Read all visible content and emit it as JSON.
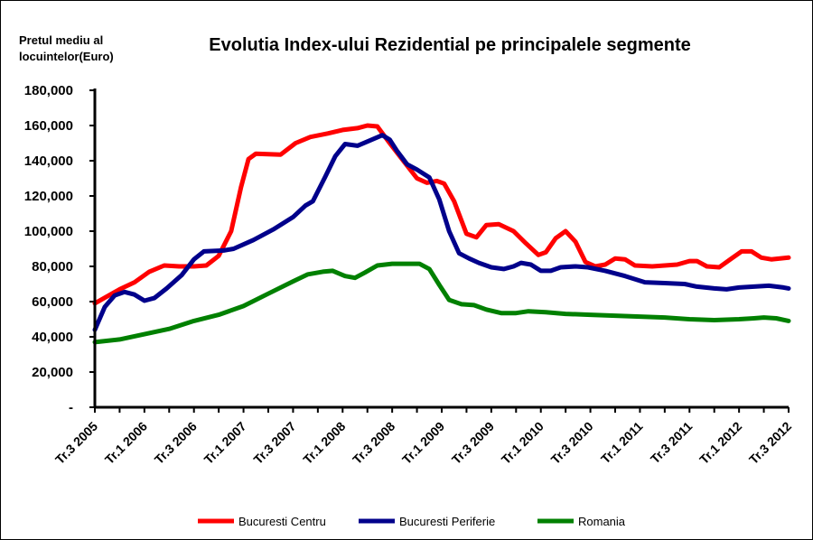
{
  "chart_data": {
    "type": "line",
    "title": "Evolutia Index-ului Rezidential pe principalele segmente",
    "ylabel": [
      "Pretul mediu al",
      "locuintelor(Euro)"
    ],
    "xlabel": "",
    "ylim": [
      0,
      180000
    ],
    "y_ticks": [
      {
        "value": 0,
        "label": "-"
      },
      {
        "value": 20000,
        "label": "20,000"
      },
      {
        "value": 40000,
        "label": "40,000"
      },
      {
        "value": 60000,
        "label": "60,000"
      },
      {
        "value": 80000,
        "label": "80,000"
      },
      {
        "value": 100000,
        "label": "100,000"
      },
      {
        "value": 120000,
        "label": "120,000"
      },
      {
        "value": 140000,
        "label": "140,000"
      },
      {
        "value": 160000,
        "label": "160,000"
      },
      {
        "value": 180000,
        "label": "180,000"
      }
    ],
    "x_range": [
      0,
      28
    ],
    "x_ticks": [
      {
        "pos": 0,
        "label": "Tr.3 2005"
      },
      {
        "pos": 2,
        "label": "Tr.1 2006"
      },
      {
        "pos": 4,
        "label": "Tr.3 2006"
      },
      {
        "pos": 6,
        "label": "Tr.1 2007"
      },
      {
        "pos": 8,
        "label": "Tr.3 2007"
      },
      {
        "pos": 10,
        "label": "Tr.1 2008"
      },
      {
        "pos": 12,
        "label": "Tr.3 2008"
      },
      {
        "pos": 14,
        "label": "Tr.1 2009"
      },
      {
        "pos": 16,
        "label": "Tr.3 2009"
      },
      {
        "pos": 18,
        "label": "Tr.1 2010"
      },
      {
        "pos": 20,
        "label": "Tr.3 2010"
      },
      {
        "pos": 22,
        "label": "Tr.1 2011"
      },
      {
        "pos": 24,
        "label": "Tr.3 2011"
      },
      {
        "pos": 26,
        "label": "Tr.1 2012"
      },
      {
        "pos": 28,
        "label": "Tr.3 2012"
      }
    ],
    "grid": false,
    "legend_position": "bottom",
    "series": [
      {
        "name": "Bucuresti Centru",
        "color": "#ff0000",
        "points": [
          [
            0,
            59000
          ],
          [
            1,
            67000
          ],
          [
            1.6,
            71000
          ],
          [
            2.2,
            77000
          ],
          [
            2.8,
            80500
          ],
          [
            3.4,
            80000
          ],
          [
            4,
            80000
          ],
          [
            4.5,
            80500
          ],
          [
            5,
            86000
          ],
          [
            5.5,
            100000
          ],
          [
            5.9,
            125000
          ],
          [
            6.2,
            141000
          ],
          [
            6.5,
            144000
          ],
          [
            7.5,
            143500
          ],
          [
            8.1,
            150000
          ],
          [
            8.7,
            153500
          ],
          [
            9.4,
            155500
          ],
          [
            10,
            157500
          ],
          [
            10.6,
            158500
          ],
          [
            11.0,
            160000
          ],
          [
            11.4,
            159500
          ],
          [
            11.9,
            150000
          ],
          [
            12.5,
            139000
          ],
          [
            13.0,
            130000
          ],
          [
            13.4,
            127500
          ],
          [
            13.8,
            128500
          ],
          [
            14.1,
            127000
          ],
          [
            14.5,
            117000
          ],
          [
            15.0,
            98500
          ],
          [
            15.4,
            96500
          ],
          [
            15.8,
            103500
          ],
          [
            16.3,
            104000
          ],
          [
            16.9,
            100000
          ],
          [
            17.4,
            93000
          ],
          [
            17.9,
            86500
          ],
          [
            18.2,
            88000
          ],
          [
            18.6,
            96000
          ],
          [
            19.0,
            100000
          ],
          [
            19.4,
            94000
          ],
          [
            19.8,
            82500
          ],
          [
            20.2,
            80000
          ],
          [
            20.6,
            81000
          ],
          [
            21.0,
            84500
          ],
          [
            21.4,
            84000
          ],
          [
            21.8,
            80500
          ],
          [
            22.5,
            80000
          ],
          [
            23.5,
            81000
          ],
          [
            24.0,
            83000
          ],
          [
            24.3,
            83000
          ],
          [
            24.7,
            80000
          ],
          [
            25.2,
            79500
          ],
          [
            25.7,
            84500
          ],
          [
            26.1,
            88500
          ],
          [
            26.5,
            88500
          ],
          [
            26.9,
            85000
          ],
          [
            27.3,
            84000
          ],
          [
            28,
            85000
          ]
        ]
      },
      {
        "name": "Bucuresti Periferie",
        "color": "#00008b",
        "points": [
          [
            0,
            44000
          ],
          [
            0.4,
            57000
          ],
          [
            0.8,
            63500
          ],
          [
            1.2,
            65500
          ],
          [
            1.6,
            64000
          ],
          [
            2.0,
            60500
          ],
          [
            2.4,
            62000
          ],
          [
            2.9,
            67500
          ],
          [
            3.5,
            75000
          ],
          [
            4.0,
            84000
          ],
          [
            4.4,
            88500
          ],
          [
            5.2,
            89000
          ],
          [
            5.6,
            90000
          ],
          [
            6.4,
            95000
          ],
          [
            7.2,
            101000
          ],
          [
            8.0,
            108000
          ],
          [
            8.5,
            114500
          ],
          [
            8.8,
            117000
          ],
          [
            9.3,
            131000
          ],
          [
            9.7,
            142500
          ],
          [
            10.1,
            149500
          ],
          [
            10.6,
            148500
          ],
          [
            11.1,
            151500
          ],
          [
            11.6,
            154500
          ],
          [
            11.9,
            152000
          ],
          [
            12.2,
            145500
          ],
          [
            12.6,
            138000
          ],
          [
            13.0,
            135000
          ],
          [
            13.5,
            130500
          ],
          [
            13.9,
            118000
          ],
          [
            14.3,
            100000
          ],
          [
            14.7,
            87500
          ],
          [
            15.1,
            84500
          ],
          [
            15.5,
            82000
          ],
          [
            16.0,
            79500
          ],
          [
            16.5,
            78500
          ],
          [
            16.9,
            80000
          ],
          [
            17.2,
            82000
          ],
          [
            17.6,
            81000
          ],
          [
            18.0,
            77500
          ],
          [
            18.4,
            77500
          ],
          [
            18.8,
            79500
          ],
          [
            19.4,
            80000
          ],
          [
            19.9,
            79500
          ],
          [
            20.6,
            77500
          ],
          [
            21.4,
            74500
          ],
          [
            22.2,
            71000
          ],
          [
            23.0,
            70500
          ],
          [
            23.8,
            70000
          ],
          [
            24.3,
            68500
          ],
          [
            25.0,
            67500
          ],
          [
            25.5,
            67000
          ],
          [
            26.0,
            68000
          ],
          [
            26.6,
            68500
          ],
          [
            27.2,
            69000
          ],
          [
            27.8,
            68000
          ],
          [
            28,
            67500
          ]
        ]
      },
      {
        "name": "Romania",
        "color": "#008000",
        "points": [
          [
            0,
            37000
          ],
          [
            1.0,
            38500
          ],
          [
            2.0,
            41500
          ],
          [
            3.0,
            44500
          ],
          [
            4.0,
            49000
          ],
          [
            5.0,
            52500
          ],
          [
            6.0,
            57500
          ],
          [
            7.0,
            64500
          ],
          [
            8.0,
            71500
          ],
          [
            8.6,
            75500
          ],
          [
            9.2,
            77000
          ],
          [
            9.6,
            77500
          ],
          [
            10.1,
            74500
          ],
          [
            10.5,
            73500
          ],
          [
            10.9,
            76500
          ],
          [
            11.4,
            80500
          ],
          [
            12.0,
            81500
          ],
          [
            12.6,
            81500
          ],
          [
            13.1,
            81500
          ],
          [
            13.5,
            78500
          ],
          [
            13.9,
            69500
          ],
          [
            14.3,
            61000
          ],
          [
            14.8,
            58500
          ],
          [
            15.3,
            58000
          ],
          [
            15.8,
            55500
          ],
          [
            16.4,
            53500
          ],
          [
            17.0,
            53500
          ],
          [
            17.5,
            54500
          ],
          [
            18.2,
            54000
          ],
          [
            19.0,
            53000
          ],
          [
            20.0,
            52500
          ],
          [
            21.0,
            52000
          ],
          [
            22.0,
            51500
          ],
          [
            23.0,
            51000
          ],
          [
            24.0,
            50000
          ],
          [
            25.0,
            49500
          ],
          [
            26.0,
            50000
          ],
          [
            26.6,
            50500
          ],
          [
            27.0,
            51000
          ],
          [
            27.5,
            50500
          ],
          [
            28,
            49000
          ]
        ]
      }
    ]
  }
}
